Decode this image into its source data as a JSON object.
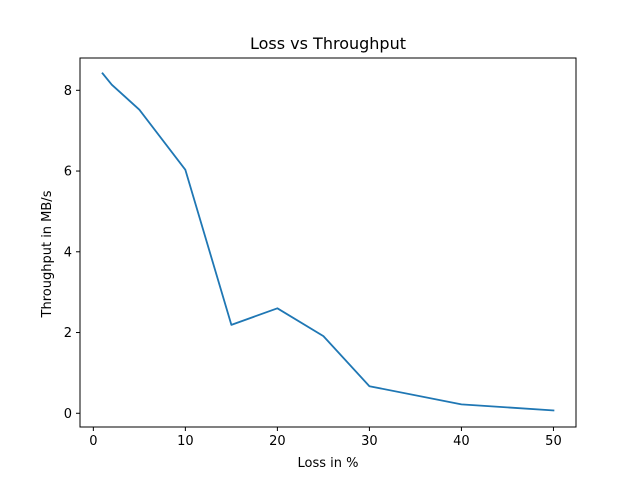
{
  "chart_data": {
    "type": "line",
    "title": "Loss vs Throughput",
    "xlabel": "Loss in %",
    "ylabel": "Throughput in MB/s",
    "xlim": [
      -1.45,
      52.45
    ],
    "ylim": [
      -0.34,
      8.8
    ],
    "xticks": [
      0,
      10,
      20,
      30,
      40,
      50
    ],
    "yticks": [
      0,
      2,
      4,
      6,
      8
    ],
    "grid": false,
    "series": [
      {
        "color": "#1f77b4",
        "x": [
          1,
          2,
          5,
          10,
          15,
          20,
          25,
          30,
          40,
          50
        ],
        "y": [
          8.42,
          8.14,
          7.52,
          6.03,
          2.19,
          2.6,
          1.91,
          0.67,
          0.22,
          0.07
        ]
      }
    ]
  }
}
